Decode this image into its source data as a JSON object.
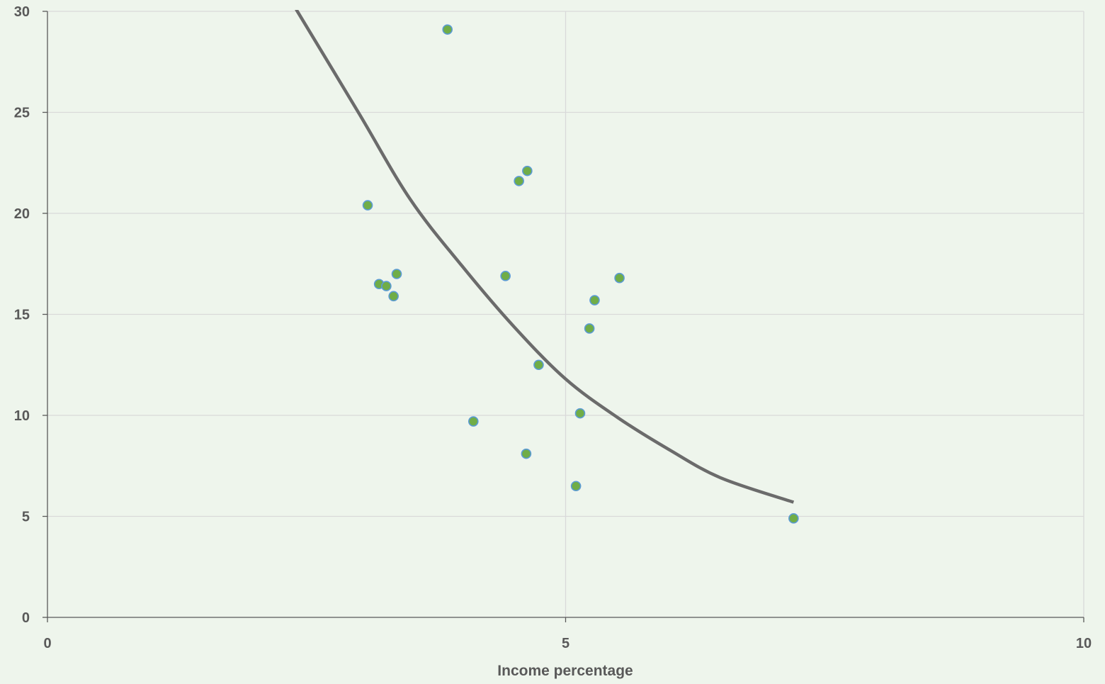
{
  "chart_data": {
    "type": "scatter",
    "title": "",
    "xlabel": "Income percentage",
    "ylabel": "",
    "xlim": [
      0,
      10
    ],
    "ylim": [
      0,
      30
    ],
    "x_ticks": [
      0,
      5,
      10
    ],
    "y_ticks": [
      0,
      5,
      10,
      15,
      20,
      25,
      30
    ],
    "grid": true,
    "legend": "none",
    "colors": {
      "background": "#eef5ec",
      "grid": "#d9d9d9",
      "axis": "#595959",
      "marker_fill": "#70ad47",
      "marker_edge": "#5b9bd5",
      "trendline": "#6b6b6b"
    },
    "series": [
      {
        "values": [
          {
            "x": 3.09,
            "y": 20.4
          },
          {
            "x": 3.2,
            "y": 16.5
          },
          {
            "x": 3.27,
            "y": 16.4
          },
          {
            "x": 3.34,
            "y": 15.9
          },
          {
            "x": 3.37,
            "y": 17.0
          },
          {
            "x": 3.86,
            "y": 29.1
          },
          {
            "x": 4.11,
            "y": 9.7
          },
          {
            "x": 4.42,
            "y": 16.9
          },
          {
            "x": 4.55,
            "y": 21.6
          },
          {
            "x": 4.62,
            "y": 8.1
          },
          {
            "x": 4.63,
            "y": 22.1
          },
          {
            "x": 4.74,
            "y": 12.5
          },
          {
            "x": 5.1,
            "y": 6.5
          },
          {
            "x": 5.14,
            "y": 10.1
          },
          {
            "x": 5.23,
            "y": 14.3
          },
          {
            "x": 5.28,
            "y": 15.7
          },
          {
            "x": 5.52,
            "y": 16.8
          },
          {
            "x": 7.2,
            "y": 4.9
          }
        ]
      }
    ],
    "trendline": {
      "type": "exponential",
      "x_range": [
        2.4,
        7.2
      ],
      "points": [
        {
          "x": 2.4,
          "y": 30.1
        },
        {
          "x": 3.0,
          "y": 25.0
        },
        {
          "x": 3.5,
          "y": 20.7
        },
        {
          "x": 4.0,
          "y": 17.4
        },
        {
          "x": 4.5,
          "y": 14.4
        },
        {
          "x": 5.0,
          "y": 11.8
        },
        {
          "x": 5.5,
          "y": 9.9
        },
        {
          "x": 6.0,
          "y": 8.3
        },
        {
          "x": 6.5,
          "y": 6.9
        },
        {
          "x": 7.2,
          "y": 5.7
        }
      ]
    }
  }
}
